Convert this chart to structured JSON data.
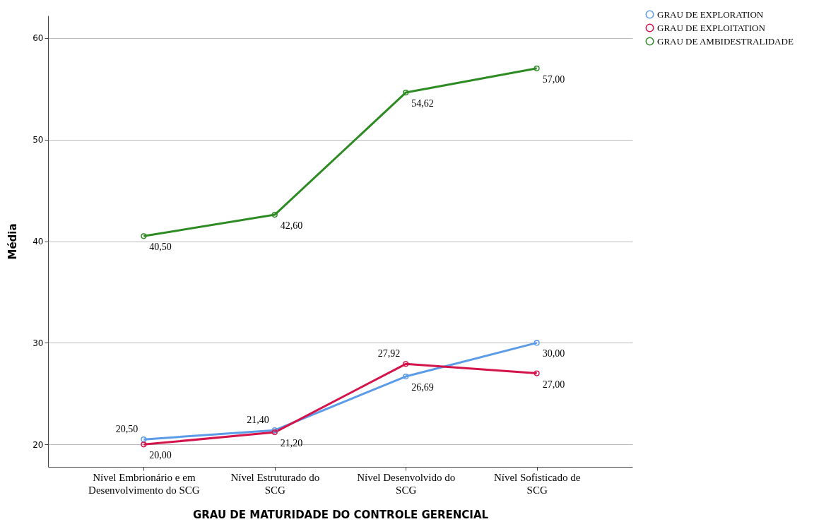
{
  "chart_data": {
    "type": "line",
    "xlabel": "GRAU DE MATURIDADE DO CONTROLE GERENCIAL",
    "ylabel": "Média",
    "categories": [
      "Nível Embrionário e em Desenvolvimento do SCG",
      "Nível Estruturado do SCG",
      "Nível Desenvolvido do SCG",
      "Nível Sofisticado de SCG"
    ],
    "series": [
      {
        "name": "GRAU DE EXPLORATION",
        "color": "#5b9be8",
        "values": [
          20.5,
          21.4,
          26.69,
          30.0
        ],
        "value_labels": [
          "20,50",
          "21,40",
          "26,69",
          "30,00"
        ]
      },
      {
        "name": "GRAU DE EXPLOITATION",
        "color": "#d4134a",
        "values": [
          20.0,
          21.2,
          27.92,
          27.0
        ],
        "value_labels": [
          "20,00",
          "21,20",
          "27,92",
          "27,00"
        ]
      },
      {
        "name": "GRAU DE AMBIDESTRALIDADE",
        "color": "#2e8b24",
        "values": [
          40.5,
          42.6,
          54.62,
          57.0
        ],
        "value_labels": [
          "40,50",
          "42,60",
          "54,62",
          "57,00"
        ]
      }
    ],
    "ylim": [
      17.8,
      62.2
    ],
    "yticks": [
      20,
      30,
      40,
      50,
      60
    ],
    "grid": "y",
    "legend": "top right",
    "marker": "circle"
  }
}
